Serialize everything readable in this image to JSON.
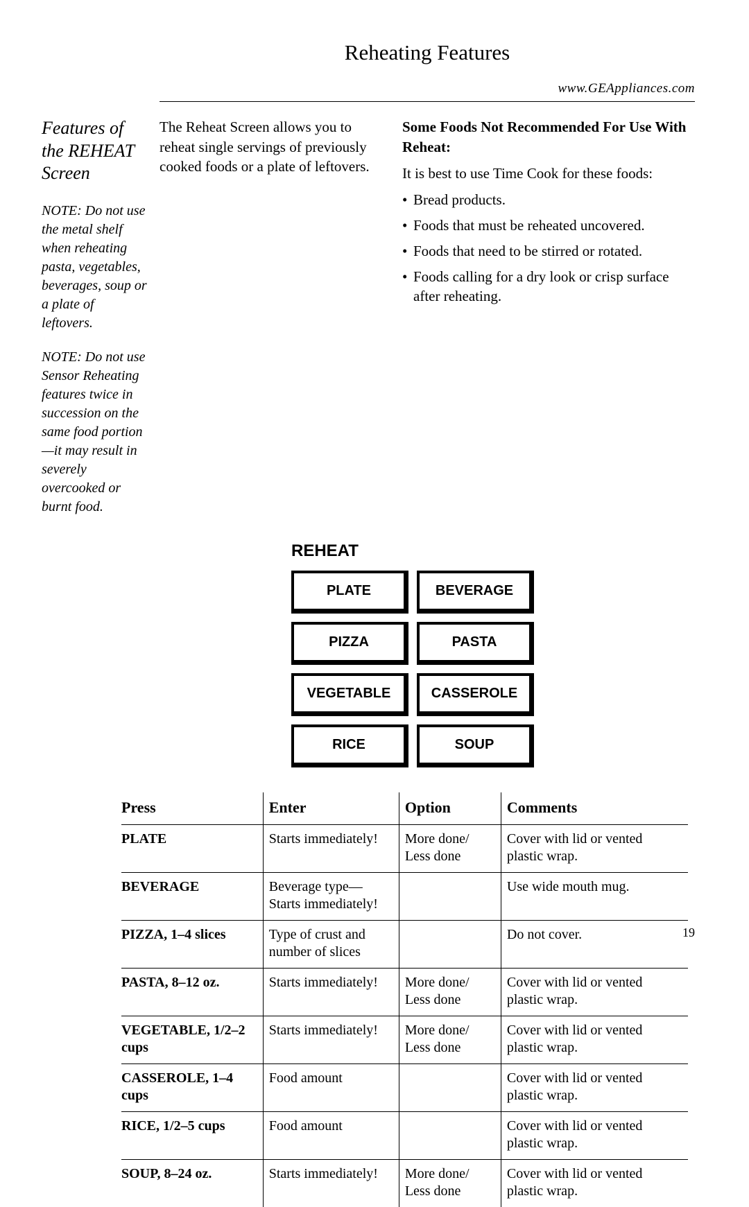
{
  "header": {
    "title": "Reheating Features",
    "url": "www.GEAppliances.com"
  },
  "left": {
    "heading": "Features of the REHEAT Screen",
    "note1": "NOTE: Do not use the metal shelf when reheating pasta, vegetables, beverages, soup or a plate of leftovers.",
    "note2": "NOTE: Do not use Sensor Reheating features twice in succession on the same food portion—it may result in severely overcooked or burnt food."
  },
  "mid": {
    "para": "The Reheat Screen allows you to reheat single servings of previously cooked foods or a plate of leftovers."
  },
  "right": {
    "heading": "Some Foods Not Recommended For Use With Reheat:",
    "lead": "It is best to use Time Cook for these foods:",
    "bullets": [
      "Bread products.",
      "Foods that must be reheated uncovered.",
      "Foods that need to be stirred or rotated.",
      "Foods calling for a dry look or crisp surface after reheating."
    ]
  },
  "reheat": {
    "label": "REHEAT",
    "buttons": [
      "PLATE",
      "BEVERAGE",
      "PIZZA",
      "PASTA",
      "VEGETABLE",
      "CASSEROLE",
      "RICE",
      "SOUP"
    ]
  },
  "table": {
    "headers": {
      "press": "Press",
      "enter": "Enter",
      "option": "Option",
      "comments": "Comments"
    },
    "rows": [
      {
        "press": "PLATE",
        "enter": "Starts immediately!",
        "option": "More done/ Less done",
        "comments": "Cover with lid or vented plastic wrap."
      },
      {
        "press": "BEVERAGE",
        "enter": "Beverage type—Starts immediately!",
        "option": "",
        "comments": "Use wide mouth mug."
      },
      {
        "press": "PIZZA, 1–4 slices",
        "enter": "Type of crust and number of slices",
        "option": "",
        "comments": "Do not cover."
      },
      {
        "press": "PASTA, 8–12 oz.",
        "enter": "Starts immediately!",
        "option": "More done/ Less done",
        "comments": "Cover with lid or vented plastic wrap."
      },
      {
        "press": "VEGETABLE, 1/2–2 cups",
        "enter": "Starts immediately!",
        "option": "More done/ Less done",
        "comments": "Cover with lid or vented plastic wrap."
      },
      {
        "press": "CASSEROLE, 1–4 cups",
        "enter": "Food amount",
        "option": "",
        "comments": "Cover with lid or vented plastic wrap."
      },
      {
        "press": "RICE, 1/2–5 cups",
        "enter": "Food amount",
        "option": "",
        "comments": "Cover with lid or vented plastic wrap."
      },
      {
        "press": "SOUP, 8–24 oz.",
        "enter": "Starts immediately!",
        "option": "More done/ Less done",
        "comments": "Cover with lid or vented plastic wrap."
      }
    ]
  },
  "page_number": "19"
}
